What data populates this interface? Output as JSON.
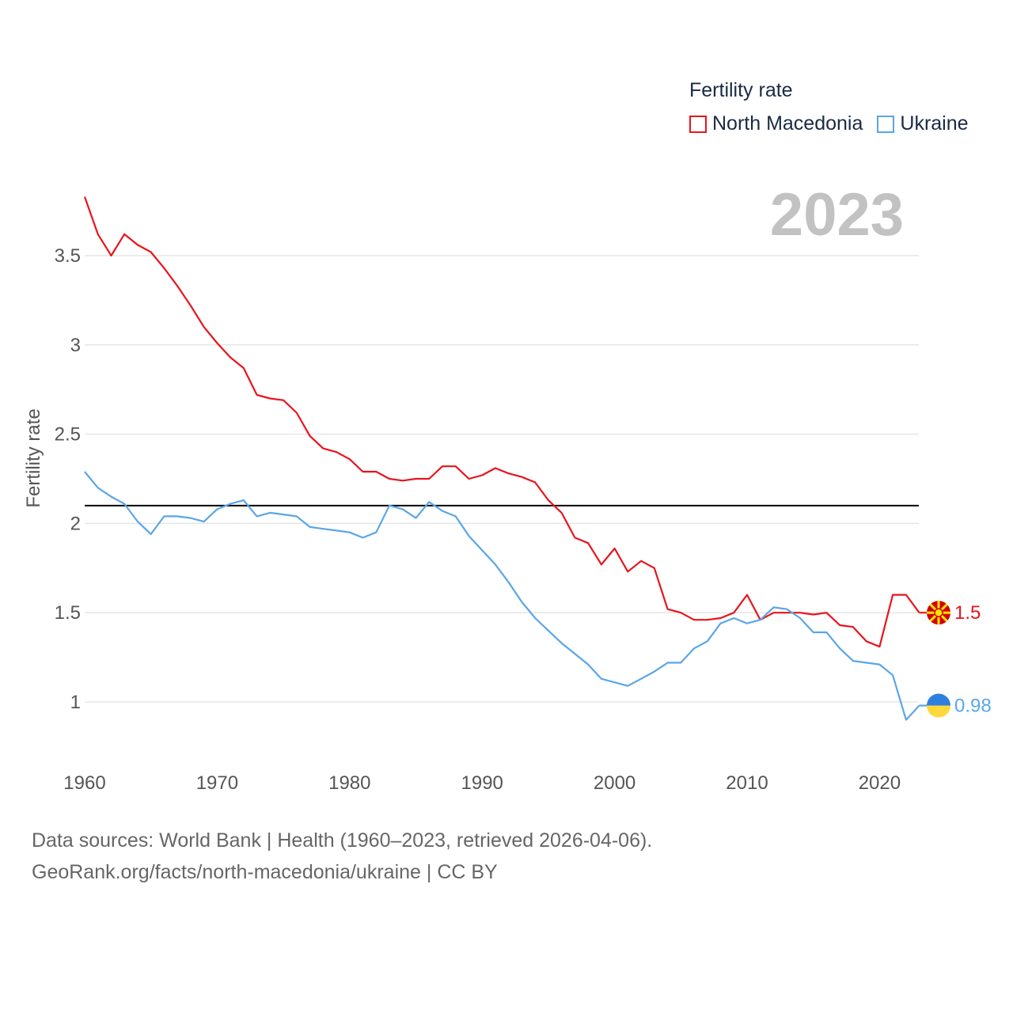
{
  "legend": {
    "title": "Fertility rate",
    "items": [
      {
        "label": "North Macedonia",
        "color": "#e8141c"
      },
      {
        "label": "Ukraine",
        "color": "#5aa6e8"
      }
    ]
  },
  "year_label": "2023",
  "footer": {
    "line1": "Data sources: World Bank | Health (1960–2023, retrieved 2026-04-06).",
    "line2": "GeoRank.org/facts/north-macedonia/ukraine | CC BY"
  },
  "chart_data": {
    "type": "line",
    "title": "Fertility rate",
    "xlabel": "",
    "ylabel": "Fertility rate",
    "xlim": [
      1960,
      2023
    ],
    "ylim": [
      0.8,
      3.85
    ],
    "x_ticks": [
      1960,
      1970,
      1980,
      1990,
      2000,
      2010,
      2020
    ],
    "y_ticks": [
      1,
      1.5,
      2,
      2.5,
      3,
      3.5
    ],
    "y_tick_labels": [
      "1",
      "1.5",
      "2",
      "2.5",
      "3",
      "3.5"
    ],
    "reference_line": {
      "y": 2.1,
      "color": "#000000"
    },
    "x": [
      1960,
      1961,
      1962,
      1963,
      1964,
      1965,
      1966,
      1967,
      1968,
      1969,
      1970,
      1971,
      1972,
      1973,
      1974,
      1975,
      1976,
      1977,
      1978,
      1979,
      1980,
      1981,
      1982,
      1983,
      1984,
      1985,
      1986,
      1987,
      1988,
      1989,
      1990,
      1991,
      1992,
      1993,
      1994,
      1995,
      1996,
      1997,
      1998,
      1999,
      2000,
      2001,
      2002,
      2003,
      2004,
      2005,
      2006,
      2007,
      2008,
      2009,
      2010,
      2011,
      2012,
      2013,
      2014,
      2015,
      2016,
      2017,
      2018,
      2019,
      2020,
      2021,
      2022,
      2023
    ],
    "series": [
      {
        "name": "North Macedonia",
        "color": "#e8141c",
        "end_label": "1.5",
        "values": [
          3.83,
          3.62,
          3.5,
          3.62,
          3.56,
          3.52,
          3.43,
          3.33,
          3.22,
          3.1,
          3.01,
          2.93,
          2.87,
          2.72,
          2.7,
          2.69,
          2.62,
          2.49,
          2.42,
          2.4,
          2.36,
          2.29,
          2.29,
          2.25,
          2.24,
          2.25,
          2.25,
          2.32,
          2.32,
          2.25,
          2.27,
          2.31,
          2.28,
          2.26,
          2.23,
          2.13,
          2.06,
          1.92,
          1.89,
          1.77,
          1.86,
          1.73,
          1.79,
          1.75,
          1.52,
          1.5,
          1.46,
          1.46,
          1.47,
          1.5,
          1.6,
          1.46,
          1.5,
          1.5,
          1.5,
          1.49,
          1.5,
          1.43,
          1.42,
          1.34,
          1.31,
          1.6,
          1.6,
          1.5
        ]
      },
      {
        "name": "Ukraine",
        "color": "#5aa6e8",
        "end_label": "0.98",
        "values": [
          2.29,
          2.2,
          2.15,
          2.11,
          2.01,
          1.94,
          2.04,
          2.04,
          2.03,
          2.01,
          2.08,
          2.11,
          2.13,
          2.04,
          2.06,
          2.05,
          2.04,
          1.98,
          1.97,
          1.96,
          1.95,
          1.92,
          1.95,
          2.1,
          2.08,
          2.03,
          2.12,
          2.07,
          2.04,
          1.93,
          1.85,
          1.77,
          1.67,
          1.56,
          1.47,
          1.4,
          1.33,
          1.27,
          1.21,
          1.13,
          1.11,
          1.09,
          1.13,
          1.17,
          1.22,
          1.22,
          1.3,
          1.34,
          1.44,
          1.47,
          1.44,
          1.46,
          1.53,
          1.52,
          1.47,
          1.39,
          1.39,
          1.3,
          1.23,
          1.22,
          1.21,
          1.15,
          0.9,
          0.98
        ]
      }
    ]
  }
}
